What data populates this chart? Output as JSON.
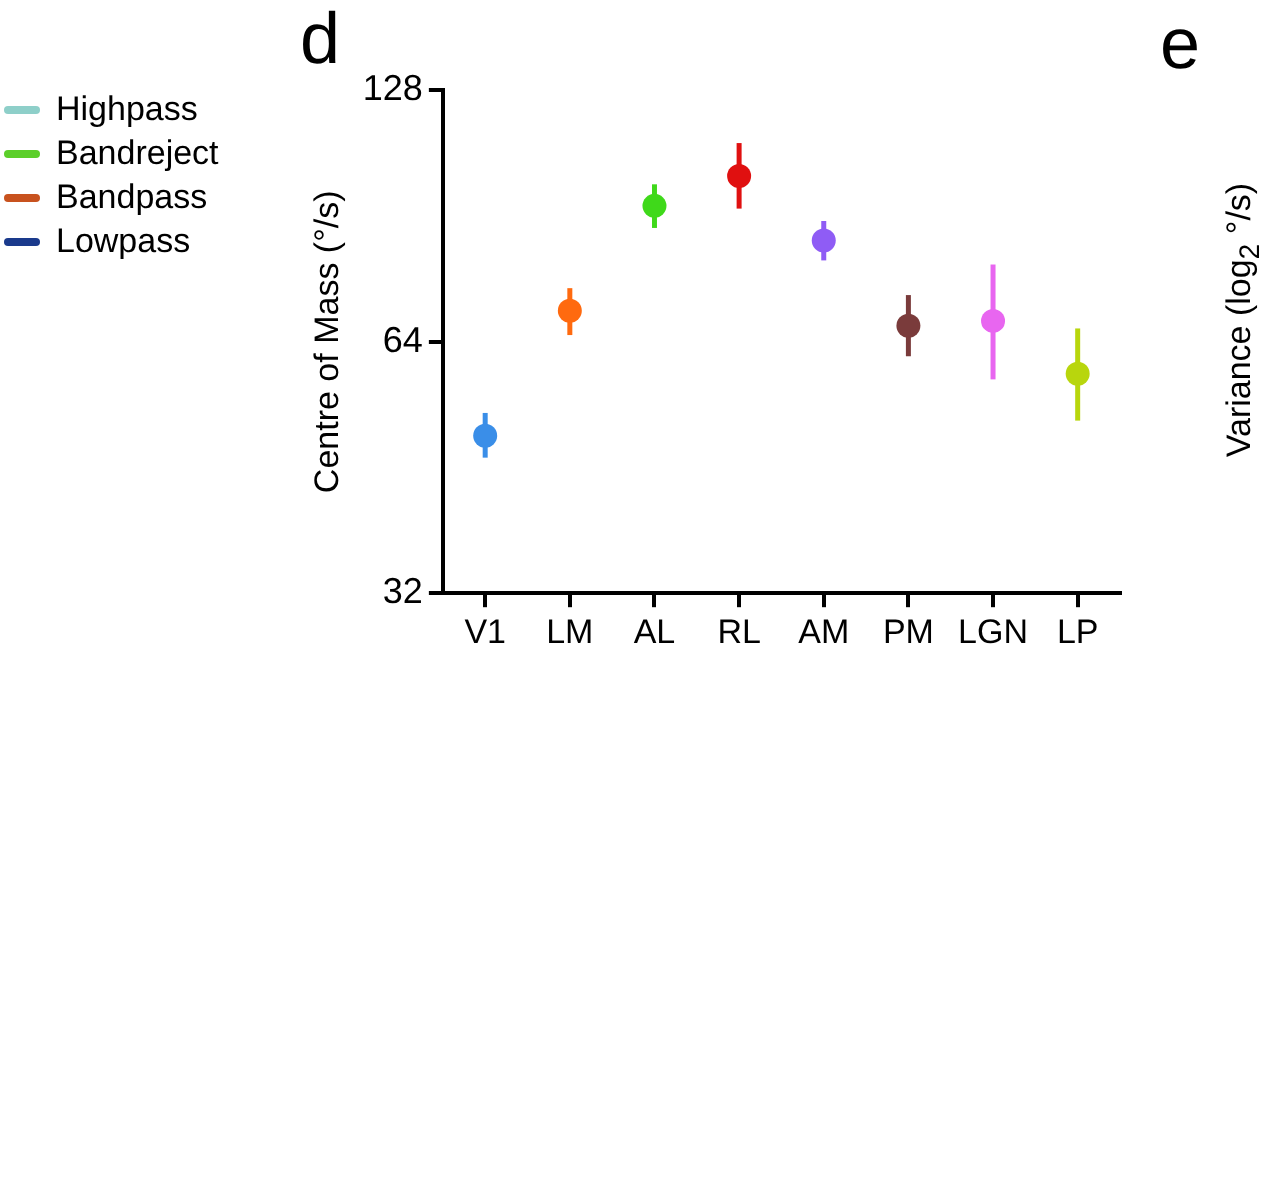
{
  "chart_data": [
    {
      "type": "other",
      "legend": "left",
      "series": [
        {
          "name": "Highpass",
          "color": "#8ecfc9"
        },
        {
          "name": "Bandreject",
          "color": "#5ccf2a"
        },
        {
          "name": "Bandpass",
          "color": "#c8521e"
        },
        {
          "name": "Lowpass",
          "color": "#1a3a8c"
        }
      ]
    },
    {
      "type": "scatter",
      "title": "d",
      "ylabel": "Centre of Mass (°/s)",
      "log": true,
      "grid": false,
      "legend": false,
      "marker": "circle",
      "categories": [
        "V1",
        "LM",
        "AL",
        "RL",
        "AM",
        "PM",
        "LGN",
        "LP"
      ],
      "values": [
        49.4,
        69.7,
        93.1,
        101.1,
        84.6,
        66.9,
        67.8,
        58.6
      ],
      "errors": [
        [
          46.5,
          52.6
        ],
        [
          65.2,
          74.2
        ],
        [
          87.6,
          98.8
        ],
        [
          92.4,
          110.7
        ],
        [
          80.1,
          89.3
        ],
        [
          61.5,
          72.8
        ],
        [
          57.7,
          79.2
        ],
        [
          51.5,
          66.4
        ]
      ],
      "colors": [
        "#3a8ee8",
        "#ff6a0f",
        "#3fd91a",
        "#e01010",
        "#8f5cf5",
        "#7a3b3b",
        "#e866f0",
        "#b8d60d"
      ],
      "ylim": [
        32,
        128
      ],
      "yticks": [
        32,
        64,
        128
      ]
    },
    {
      "type": "other",
      "title": "e",
      "ylabel": "Variance (log$_{2}$ °/s)"
    }
  ]
}
